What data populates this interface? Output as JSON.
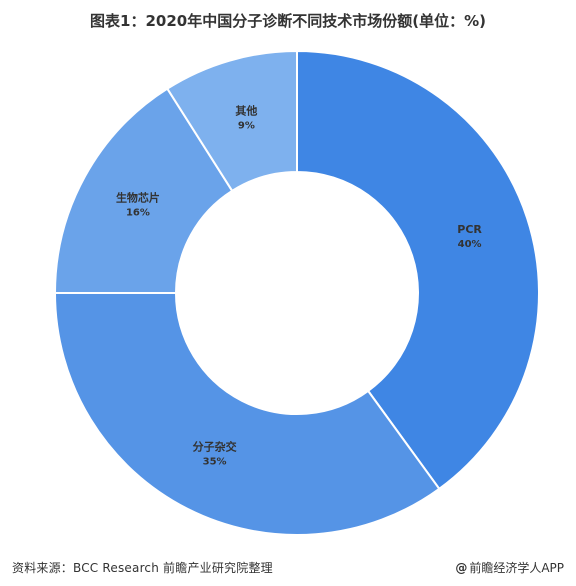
{
  "title": "图表1：2020年中国分子诊断不同技术市场份额(单位：%)",
  "footer": {
    "source": "资料来源：BCC Research 前瞻产业研究院整理",
    "brand": "前瞻经济学人APP",
    "at_symbol": "@"
  },
  "chart_data": {
    "type": "pie",
    "title": "图表1：2020年中国分子诊断不同技术市场份额(单位：%)",
    "donut": true,
    "slices": [
      {
        "label": "PCR",
        "value": 40,
        "value_text": "40%",
        "color": "#3f86e4"
      },
      {
        "label": "分子杂交",
        "value": 35,
        "value_text": "35%",
        "color": "#5594e6"
      },
      {
        "label": "生物芯片",
        "value": 16,
        "value_text": "16%",
        "color": "#6aa3ea"
      },
      {
        "label": "其他",
        "value": 9,
        "value_text": "9%",
        "color": "#7eb1ee"
      }
    ]
  }
}
